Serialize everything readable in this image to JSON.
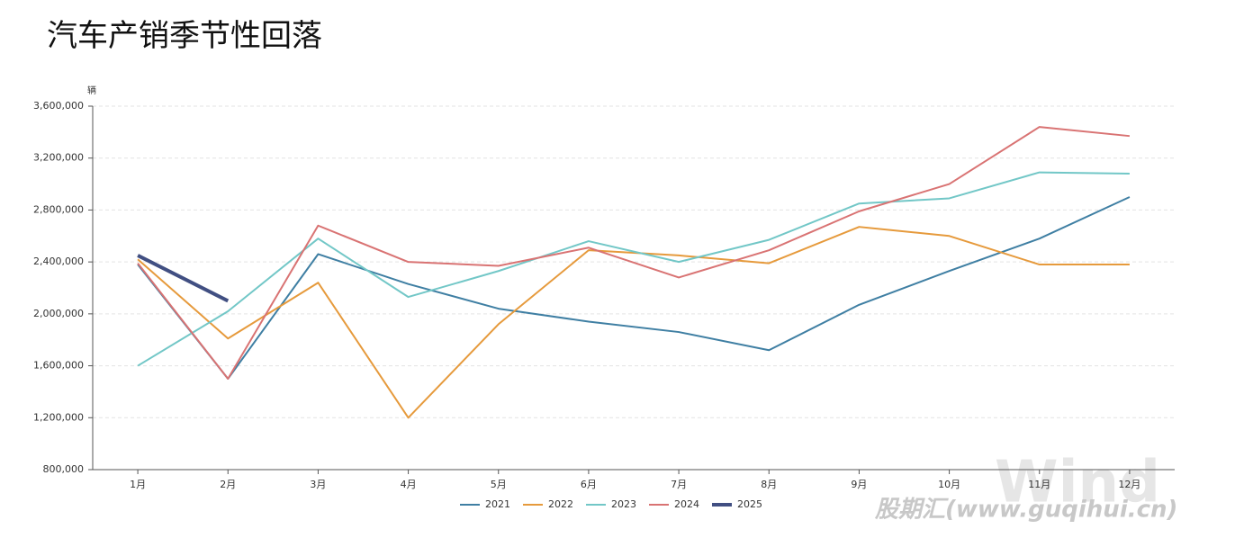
{
  "chart_data": {
    "type": "line",
    "title": "汽车产销季节性回落",
    "y_unit": "辆",
    "categories": [
      "1月",
      "2月",
      "3月",
      "4月",
      "5月",
      "6月",
      "7月",
      "8月",
      "9月",
      "10月",
      "11月",
      "12月"
    ],
    "series": [
      {
        "name": "2021",
        "color": "#3f7fa3",
        "values": [
          2380000,
          1500000,
          2460000,
          2230000,
          2040000,
          1940000,
          1860000,
          1720000,
          2070000,
          2330000,
          2580000,
          2900000
        ]
      },
      {
        "name": "2022",
        "color": "#e69a3c",
        "values": [
          2420000,
          1810000,
          2240000,
          1200000,
          1920000,
          2490000,
          2450000,
          2390000,
          2670000,
          2600000,
          2380000,
          2380000
        ]
      },
      {
        "name": "2023",
        "color": "#72c7c7",
        "values": [
          1600000,
          2020000,
          2580000,
          2130000,
          2330000,
          2560000,
          2400000,
          2570000,
          2850000,
          2890000,
          3090000,
          3080000
        ]
      },
      {
        "name": "2024",
        "color": "#d97373",
        "values": [
          2390000,
          1500000,
          2680000,
          2400000,
          2370000,
          2510000,
          2280000,
          2490000,
          2790000,
          3000000,
          3440000,
          3370000
        ]
      },
      {
        "name": "2025",
        "color": "#414f82",
        "values": [
          2450000,
          2100000,
          null,
          null,
          null,
          null,
          null,
          null,
          null,
          null,
          null,
          null
        ]
      }
    ],
    "ylim": [
      800000,
      3600000
    ],
    "yticks": [
      {
        "value": 800000,
        "label": "800,000"
      },
      {
        "value": 1200000,
        "label": "1,200,000"
      },
      {
        "value": 1600000,
        "label": "1,600,000"
      },
      {
        "value": 2000000,
        "label": "2,000,000"
      },
      {
        "value": 2400000,
        "label": "2,400,000"
      },
      {
        "value": 2800000,
        "label": "2,800,000"
      },
      {
        "value": 3200000,
        "label": "3,200,000"
      },
      {
        "value": 3600000,
        "label": "3,600,000"
      }
    ],
    "grid": true,
    "legend": "bottom",
    "watermarks": [
      "Wind",
      "股期汇(www.guqihui.cn)"
    ]
  }
}
